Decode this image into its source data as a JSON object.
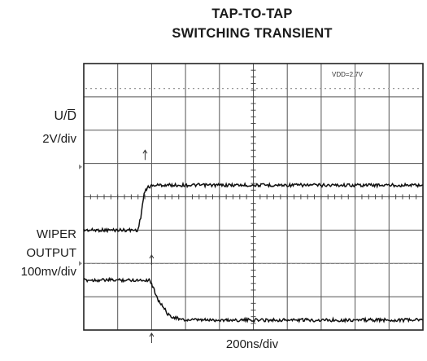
{
  "chart_data": {
    "type": "line",
    "title_line1": "TAP-TO-TAP",
    "title_line2": "SWITCHING TRANSIENT",
    "annotation": "VDD=2.7V",
    "xlabel": "200ns/div",
    "grid": true,
    "channels": [
      {
        "label_line1": "U/D̅",
        "label_line2": "2V/div",
        "y_units": "V",
        "samples": [
          {
            "x": 0,
            "y": 0
          },
          {
            "x": 0.8,
            "y": 0
          },
          {
            "x": 1.6,
            "y": 0
          },
          {
            "x": 1.68,
            "y": 0.8
          },
          {
            "x": 1.78,
            "y": 2.2
          },
          {
            "x": 1.9,
            "y": 2.6
          },
          {
            "x": 2.1,
            "y": 2.7
          },
          {
            "x": 5,
            "y": 2.7
          },
          {
            "x": 10,
            "y": 2.7
          }
        ]
      },
      {
        "label_line1": "WIPER",
        "label_line2": "OUTPUT",
        "label_line3": "100mv/div",
        "y_units": "mV",
        "samples": [
          {
            "x": 0,
            "y": 150
          },
          {
            "x": 0.8,
            "y": 150
          },
          {
            "x": 1.95,
            "y": 150
          },
          {
            "x": 2.2,
            "y": 90
          },
          {
            "x": 2.5,
            "y": 45
          },
          {
            "x": 2.9,
            "y": 30
          },
          {
            "x": 5,
            "y": 30
          },
          {
            "x": 10,
            "y": 30
          }
        ]
      }
    ]
  }
}
